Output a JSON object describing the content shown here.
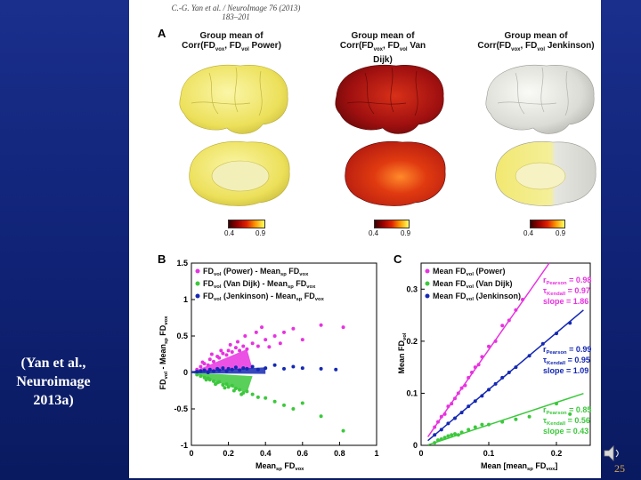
{
  "slide": {
    "citation_line1": "(Yan et al.,",
    "citation_line2": "Neuroimage",
    "citation_line3": "2013a)",
    "page_number": "25",
    "background_color": "#14287f"
  },
  "paper": {
    "running_head": "C.-G. Yan et al. / NeuroImage 76 (2013) 183–201",
    "panel_a_label": "A",
    "panel_b_label": "B",
    "panel_c_label": "C"
  },
  "brain_maps": [
    {
      "title_line1": "Group mean of",
      "title_line2": "Corr(FD",
      "sub1": "vox",
      "mid": ", FD",
      "sub2": "vol",
      "tail": " Power)",
      "cb_min": "0.4",
      "cb_max": "0.9",
      "fill_color": "#f0e468"
    },
    {
      "title_line1": "Group mean of",
      "title_line2": "Corr(FD",
      "sub1": "vox",
      "mid": ", FD",
      "sub2": "vol",
      "tail": " Van Dijk)",
      "cb_min": "0.4",
      "cb_max": "0.9",
      "fill_color": "#b01810"
    },
    {
      "title_line1": "Group mean of",
      "title_line2": "Corr(FD",
      "sub1": "vox",
      "mid": ", FD",
      "sub2": "vol",
      "tail": " Jenkinson)",
      "cb_min": "0.4",
      "cb_max": "0.9",
      "fill_color": "#e2e2dc"
    }
  ],
  "chart_data": [
    {
      "type": "scatter",
      "panel": "B",
      "ylabel": "FDvol - Meansp FDvox",
      "xlabel": "Meansp FDvox",
      "xlim": [
        0,
        1
      ],
      "ylim": [
        -1,
        1.5
      ],
      "xticks": [
        "0",
        "0.2",
        "0.4",
        "0.6",
        "0.8",
        "1"
      ],
      "yticks": [
        "-1",
        "-0.5",
        "0",
        "0.5",
        "1",
        "1.5"
      ],
      "legend": [
        "FDvol (Power) - Meansp FDvox",
        "FDvol (Van Dijk) - Meansp FDvox",
        "FDvol (Jenkinson) - Meansp FDvox"
      ],
      "series": [
        {
          "name": "Power",
          "color": "#e832e0",
          "x": [
            0.03,
            0.05,
            0.07,
            0.09,
            0.1,
            0.12,
            0.14,
            0.15,
            0.17,
            0.19,
            0.2,
            0.22,
            0.24,
            0.26,
            0.28,
            0.3,
            0.33,
            0.36,
            0.4,
            0.45,
            0.5,
            0.55,
            0.6,
            0.7,
            0.82,
            0.06,
            0.11,
            0.16,
            0.21,
            0.25,
            0.29,
            0.35,
            0.42,
            0.38,
            0.48
          ],
          "y": [
            0.04,
            0.08,
            0.12,
            0.1,
            0.18,
            0.15,
            0.22,
            0.2,
            0.26,
            0.24,
            0.3,
            0.28,
            0.34,
            0.3,
            0.36,
            0.32,
            0.4,
            0.36,
            0.45,
            0.5,
            0.55,
            0.6,
            0.45,
            0.65,
            0.62,
            0.14,
            0.25,
            0.3,
            0.38,
            0.42,
            0.5,
            0.55,
            0.35,
            0.62,
            0.4
          ]
        },
        {
          "name": "Van Dijk",
          "color": "#3cc83c",
          "x": [
            0.03,
            0.05,
            0.07,
            0.09,
            0.1,
            0.12,
            0.14,
            0.15,
            0.17,
            0.19,
            0.2,
            0.22,
            0.24,
            0.26,
            0.28,
            0.3,
            0.33,
            0.36,
            0.4,
            0.45,
            0.5,
            0.55,
            0.6,
            0.7,
            0.82,
            0.08,
            0.13,
            0.18,
            0.23,
            0.27
          ],
          "y": [
            -0.03,
            -0.05,
            -0.07,
            -0.08,
            -0.1,
            -0.12,
            -0.14,
            -0.13,
            -0.17,
            -0.16,
            -0.2,
            -0.18,
            -0.22,
            -0.24,
            -0.28,
            -0.26,
            -0.3,
            -0.34,
            -0.35,
            -0.4,
            -0.45,
            -0.5,
            -0.42,
            -0.6,
            -0.8,
            -0.1,
            -0.16,
            -0.21,
            -0.25,
            -0.3
          ]
        },
        {
          "name": "Jenkinson",
          "color": "#1428b4",
          "x": [
            0.03,
            0.05,
            0.07,
            0.09,
            0.1,
            0.12,
            0.14,
            0.15,
            0.17,
            0.19,
            0.2,
            0.22,
            0.24,
            0.26,
            0.28,
            0.3,
            0.33,
            0.36,
            0.4,
            0.45,
            0.5,
            0.55,
            0.6,
            0.7,
            0.78
          ],
          "y": [
            0.01,
            0.02,
            0.03,
            0.0,
            0.04,
            0.02,
            0.05,
            0.03,
            0.06,
            0.02,
            0.05,
            0.04,
            0.07,
            0.03,
            0.06,
            0.05,
            0.08,
            0.04,
            0.06,
            0.1,
            0.05,
            0.08,
            0.06,
            0.05,
            0.04
          ]
        }
      ]
    },
    {
      "type": "scatter",
      "panel": "C",
      "ylabel": "Mean FDvol",
      "xlabel": "Mean [meansp FDvox]",
      "xlim": [
        0,
        0.25
      ],
      "ylim": [
        0,
        0.35
      ],
      "xticks": [
        "0",
        "0.1",
        "0.2"
      ],
      "yticks": [
        "0",
        "0.1",
        "0.2",
        "0.3"
      ],
      "legend": [
        "Mean FDvol (Power)",
        "Mean FDvol (Van Dijk)",
        "Mean FDvol (Jenkinson)"
      ],
      "series": [
        {
          "name": "Power",
          "color": "#e832e0",
          "slope": 1.86,
          "r_pearson": "0.98",
          "tau_kendall": "0.97",
          "x": [
            0.02,
            0.025,
            0.03,
            0.035,
            0.04,
            0.045,
            0.05,
            0.055,
            0.06,
            0.065,
            0.07,
            0.075,
            0.08,
            0.085,
            0.09,
            0.1,
            0.11,
            0.12,
            0.13,
            0.14,
            0.15
          ],
          "y": [
            0.035,
            0.045,
            0.055,
            0.06,
            0.075,
            0.08,
            0.09,
            0.1,
            0.11,
            0.115,
            0.13,
            0.14,
            0.15,
            0.155,
            0.17,
            0.19,
            0.2,
            0.23,
            0.24,
            0.26,
            0.28
          ]
        },
        {
          "name": "Van Dijk",
          "color": "#3cc83c",
          "slope": 0.43,
          "r_pearson": "0.85",
          "tau_kendall": "0.56",
          "x": [
            0.02,
            0.025,
            0.03,
            0.035,
            0.04,
            0.045,
            0.05,
            0.055,
            0.06,
            0.07,
            0.08,
            0.09,
            0.1,
            0.12,
            0.14,
            0.16,
            0.2,
            0.22
          ],
          "y": [
            0.005,
            0.01,
            0.012,
            0.015,
            0.018,
            0.02,
            0.022,
            0.02,
            0.025,
            0.03,
            0.035,
            0.04,
            0.04,
            0.045,
            0.05,
            0.055,
            0.08,
            0.06
          ]
        },
        {
          "name": "Jenkinson",
          "color": "#1428b4",
          "slope": 1.09,
          "r_pearson": "0.99",
          "tau_kendall": "0.95",
          "x": [
            0.02,
            0.03,
            0.04,
            0.05,
            0.06,
            0.07,
            0.08,
            0.09,
            0.1,
            0.11,
            0.12,
            0.13,
            0.14,
            0.16,
            0.18,
            0.2,
            0.22
          ],
          "y": [
            0.02,
            0.03,
            0.042,
            0.052,
            0.063,
            0.075,
            0.085,
            0.095,
            0.107,
            0.118,
            0.13,
            0.14,
            0.15,
            0.172,
            0.195,
            0.215,
            0.235
          ]
        }
      ],
      "annotations": [
        {
          "label_r": "r",
          "sub_r": "Pearson",
          "val_r": "= 0.98",
          "label_t": "τ",
          "sub_t": "Kendall",
          "val_t": "= 0.97",
          "slope": "slope = 1.86",
          "color": "#e832e0"
        },
        {
          "label_r": "r",
          "sub_r": "Pearson",
          "val_r": "= 0.99",
          "label_t": "τ",
          "sub_t": "Kendall",
          "val_t": "= 0.95",
          "slope": "slope = 1.09",
          "color": "#1428b4"
        },
        {
          "label_r": "r",
          "sub_r": "Pearson",
          "val_r": "= 0.85",
          "label_t": "τ",
          "sub_t": "Kendall",
          "val_t": "= 0.56",
          "slope": "slope = 0.43",
          "color": "#3cc83c"
        }
      ]
    }
  ]
}
